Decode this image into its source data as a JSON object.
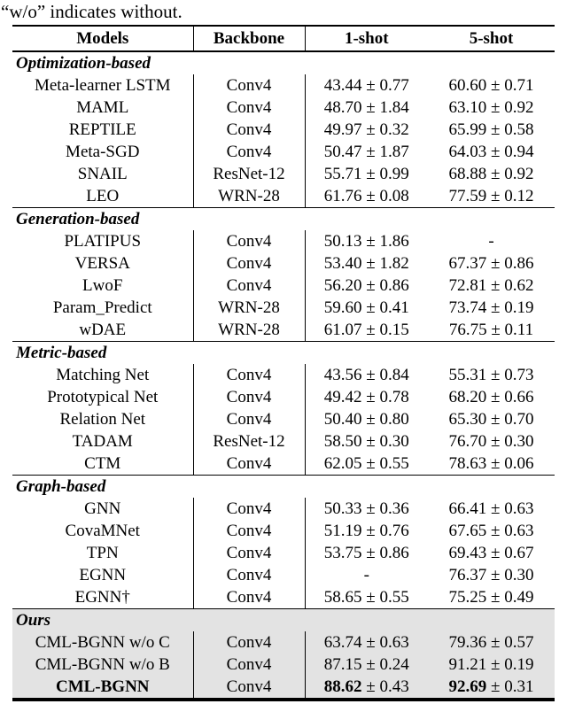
{
  "caption": "“w/o” indicates without.",
  "table": {
    "headers": [
      "Models",
      "Backbone",
      "1-shot",
      "5-shot"
    ],
    "sections": [
      {
        "title": "Optimization-based",
        "shaded": false,
        "rows": [
          {
            "model": "Meta-learner LSTM",
            "backbone": "Conv4",
            "shot1": "43.44 ± 0.77",
            "shot5": "60.60 ± 0.71"
          },
          {
            "model": "MAML",
            "backbone": "Conv4",
            "shot1": "48.70 ± 1.84",
            "shot5": "63.10 ± 0.92"
          },
          {
            "model": "REPTILE",
            "backbone": "Conv4",
            "shot1": "49.97 ± 0.32",
            "shot5": "65.99 ± 0.58"
          },
          {
            "model": "Meta-SGD",
            "backbone": "Conv4",
            "shot1": "50.47 ± 1.87",
            "shot5": "64.03 ± 0.94"
          },
          {
            "model": "SNAIL",
            "backbone": "ResNet-12",
            "shot1": "55.71 ± 0.99",
            "shot5": "68.88 ± 0.92"
          },
          {
            "model": "LEO",
            "backbone": "WRN-28",
            "shot1": "61.76 ± 0.08",
            "shot5": "77.59 ± 0.12"
          }
        ]
      },
      {
        "title": "Generation-based",
        "shaded": false,
        "rows": [
          {
            "model": "PLATIPUS",
            "backbone": "Conv4",
            "shot1": "50.13 ± 1.86",
            "shot5": "-"
          },
          {
            "model": "VERSA",
            "backbone": "Conv4",
            "shot1": "53.40 ± 1.82",
            "shot5": "67.37 ± 0.86"
          },
          {
            "model": "LwoF",
            "backbone": "Conv4",
            "shot1": "56.20 ± 0.86",
            "shot5": "72.81 ± 0.62"
          },
          {
            "model": "Param_Predict",
            "backbone": "WRN-28",
            "shot1": "59.60 ± 0.41",
            "shot5": "73.74 ± 0.19"
          },
          {
            "model": "wDAE",
            "backbone": "WRN-28",
            "shot1": "61.07 ± 0.15",
            "shot5": "76.75 ± 0.11"
          }
        ]
      },
      {
        "title": "Metric-based",
        "shaded": false,
        "rows": [
          {
            "model": "Matching Net",
            "backbone": "Conv4",
            "shot1": "43.56 ± 0.84",
            "shot5": "55.31 ± 0.73"
          },
          {
            "model": "Prototypical Net",
            "backbone": "Conv4",
            "shot1": "49.42 ± 0.78",
            "shot5": "68.20 ± 0.66"
          },
          {
            "model": "Relation Net",
            "backbone": "Conv4",
            "shot1": "50.40 ± 0.80",
            "shot5": "65.30 ± 0.70"
          },
          {
            "model": "TADAM",
            "backbone": "ResNet-12",
            "shot1": "58.50 ± 0.30",
            "shot5": "76.70 ± 0.30"
          },
          {
            "model": "CTM",
            "backbone": "Conv4",
            "shot1": "62.05 ± 0.55",
            "shot5": "78.63 ± 0.06"
          }
        ]
      },
      {
        "title": "Graph-based",
        "shaded": false,
        "rows": [
          {
            "model": "GNN",
            "backbone": "Conv4",
            "shot1": "50.33 ± 0.36",
            "shot5": "66.41 ± 0.63"
          },
          {
            "model": "CovaMNet",
            "backbone": "Conv4",
            "shot1": "51.19 ± 0.76",
            "shot5": "67.65 ± 0.63"
          },
          {
            "model": "TPN",
            "backbone": "Conv4",
            "shot1": "53.75 ± 0.86",
            "shot5": "69.43 ± 0.67"
          },
          {
            "model": "EGNN",
            "backbone": "Conv4",
            "shot1": "-",
            "shot5": "76.37 ± 0.30"
          },
          {
            "model": "EGNN†",
            "backbone": "Conv4",
            "shot1": "58.65 ± 0.55",
            "shot5": "75.25 ± 0.49"
          }
        ]
      },
      {
        "title": "Ours",
        "shaded": true,
        "rows": [
          {
            "model": "CML-BGNN w/o C",
            "backbone": "Conv4",
            "shot1": "63.74 ± 0.63",
            "shot5": "79.36 ± 0.57"
          },
          {
            "model": "CML-BGNN w/o B",
            "backbone": "Conv4",
            "shot1": "87.15 ± 0.24",
            "shot5": "91.21 ± 0.19"
          },
          {
            "model": "CML-BGNN",
            "backbone": "Conv4",
            "shot1": "88.62 ± 0.43",
            "shot5": "92.69 ± 0.31",
            "bold": true
          }
        ]
      }
    ]
  }
}
